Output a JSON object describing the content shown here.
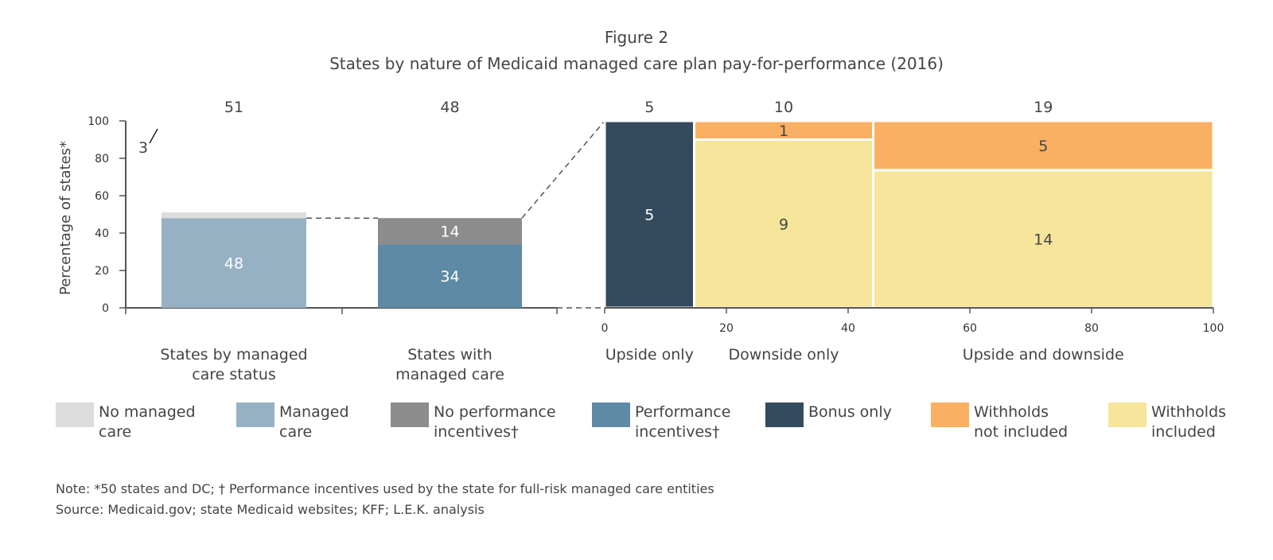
{
  "chart_data": {
    "type": "bar",
    "figure_label": "Figure 2",
    "title": "States by nature of Medicaid managed care plan pay-for-performance (2016)",
    "ylabel": "Percentage of states*",
    "ylim": [
      0,
      100
    ],
    "yticks": [
      "0",
      "20",
      "40",
      "60",
      "80",
      "100"
    ],
    "grid": false,
    "legend_position": "bottom",
    "stacked_bars": [
      {
        "category": [
          "States by managed",
          "care status"
        ],
        "total": "51",
        "segments": [
          {
            "series": "Managed care",
            "value": 48,
            "label": "48",
            "color": "#97b1c4"
          },
          {
            "series": "No managed care",
            "value": 3,
            "label": "3",
            "color": "#dcdcdc"
          }
        ]
      },
      {
        "category": [
          "States with",
          "managed care"
        ],
        "total": "48",
        "segments": [
          {
            "series": "Performance incentives",
            "value": 34,
            "label": "34",
            "color": "#5e8aa5"
          },
          {
            "series": "No performance incentives",
            "value": 14,
            "label": "14",
            "color": "#8c8c8c"
          }
        ]
      }
    ],
    "mekko": {
      "xlim": [
        0,
        100
      ],
      "xticks": [
        "0",
        "20",
        "40",
        "60",
        "80",
        "100"
      ],
      "columns": [
        {
          "category": "Upside only",
          "total": "5",
          "segments": [
            {
              "series": "Bonus only",
              "value": 5,
              "label": "5",
              "color": "#344b5d"
            }
          ]
        },
        {
          "category": "Downside only",
          "total": "10",
          "segments": [
            {
              "series": "Withholds included",
              "value": 9,
              "label": "9",
              "color": "#f6e59b"
            },
            {
              "series": "Withholds not included",
              "value": 1,
              "label": "1",
              "color": "#f9b062"
            }
          ]
        },
        {
          "category": "Upside and downside",
          "total": "19",
          "segments": [
            {
              "series": "Withholds included",
              "value": 14,
              "label": "14",
              "color": "#f6e59b"
            },
            {
              "series": "Withholds not included",
              "value": 5,
              "label": "5",
              "color": "#f9b062"
            }
          ]
        }
      ]
    },
    "legend": [
      {
        "lines": [
          "No managed",
          "care"
        ],
        "color": "#dcdcdc"
      },
      {
        "lines": [
          "Managed",
          "care"
        ],
        "color": "#97b1c4"
      },
      {
        "lines": [
          "No performance",
          "incentives†"
        ],
        "color": "#8c8c8c"
      },
      {
        "lines": [
          "Performance",
          "incentives†"
        ],
        "color": "#5e8aa5"
      },
      {
        "lines": [
          "Bonus only"
        ],
        "color": "#344b5d"
      },
      {
        "lines": [
          "Withholds",
          "not included"
        ],
        "color": "#f9b062"
      },
      {
        "lines": [
          "Withholds",
          "included"
        ],
        "color": "#f6e59b"
      }
    ],
    "notes": [
      "Note: *50 states and DC; † Performance incentives used by the state for full-risk managed care entities",
      "Source: Medicaid.gov; state Medicaid websites; KFF; L.E.K. analysis"
    ]
  }
}
